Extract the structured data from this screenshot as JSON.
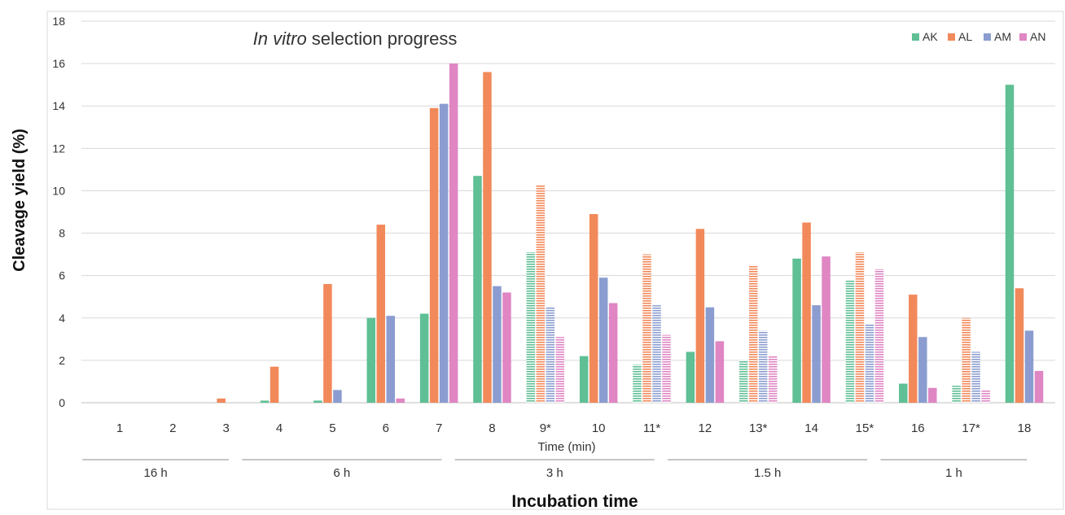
{
  "chart_data": {
    "type": "bar",
    "title_italic": "In vitro",
    "title_rest": " selection progress",
    "xlabel": "Time (min)",
    "ylabel": "Cleavage yield (%)",
    "group_axis_label": "Incubation time",
    "ylim": [
      0,
      18
    ],
    "yticks": [
      0,
      2,
      4,
      6,
      8,
      10,
      12,
      14,
      16,
      18
    ],
    "grid": true,
    "legend_position": "top-right",
    "categories": [
      "1",
      "2",
      "3",
      "4",
      "5",
      "6",
      "7",
      "8",
      "9*",
      "10",
      "11*",
      "12",
      "13*",
      "14",
      "15*",
      "16",
      "17*",
      "18"
    ],
    "hatched_categories": [
      "9*",
      "11*",
      "13*",
      "15*",
      "17*"
    ],
    "series": [
      {
        "name": "AK",
        "color": "#5fbf95",
        "values": [
          0,
          0,
          0,
          0.1,
          0.1,
          4.0,
          4.2,
          10.7,
          7.1,
          2.2,
          1.8,
          2.4,
          2.0,
          6.8,
          5.8,
          0.9,
          0.8,
          15.0
        ]
      },
      {
        "name": "AL",
        "color": "#f2895a",
        "values": [
          0,
          0,
          0.2,
          1.7,
          5.6,
          8.4,
          13.9,
          15.6,
          10.3,
          8.9,
          7.0,
          8.2,
          6.5,
          8.5,
          7.1,
          5.1,
          4.0,
          5.4
        ]
      },
      {
        "name": "AM",
        "color": "#8b9dd0",
        "values": [
          0,
          0,
          0,
          0,
          0.6,
          4.1,
          14.1,
          5.5,
          4.5,
          5.9,
          4.6,
          4.5,
          3.4,
          4.6,
          3.7,
          3.1,
          2.4,
          3.4
        ]
      },
      {
        "name": "AN",
        "color": "#df86c3",
        "values": [
          0,
          0,
          0,
          0,
          0,
          0.2,
          16.0,
          5.2,
          3.1,
          4.7,
          3.2,
          2.9,
          2.2,
          6.9,
          6.3,
          0.7,
          0.6,
          1.5
        ]
      }
    ],
    "incubation_groups": [
      {
        "label": "16 h",
        "from": "1",
        "to": "3"
      },
      {
        "label": "6 h",
        "from": "4",
        "to": "7"
      },
      {
        "label": "3 h",
        "from": "8",
        "to": "11*"
      },
      {
        "label": "1.5 h",
        "from": "12",
        "to": "15*"
      },
      {
        "label": "1 h",
        "from": "16",
        "to": "18"
      }
    ]
  }
}
